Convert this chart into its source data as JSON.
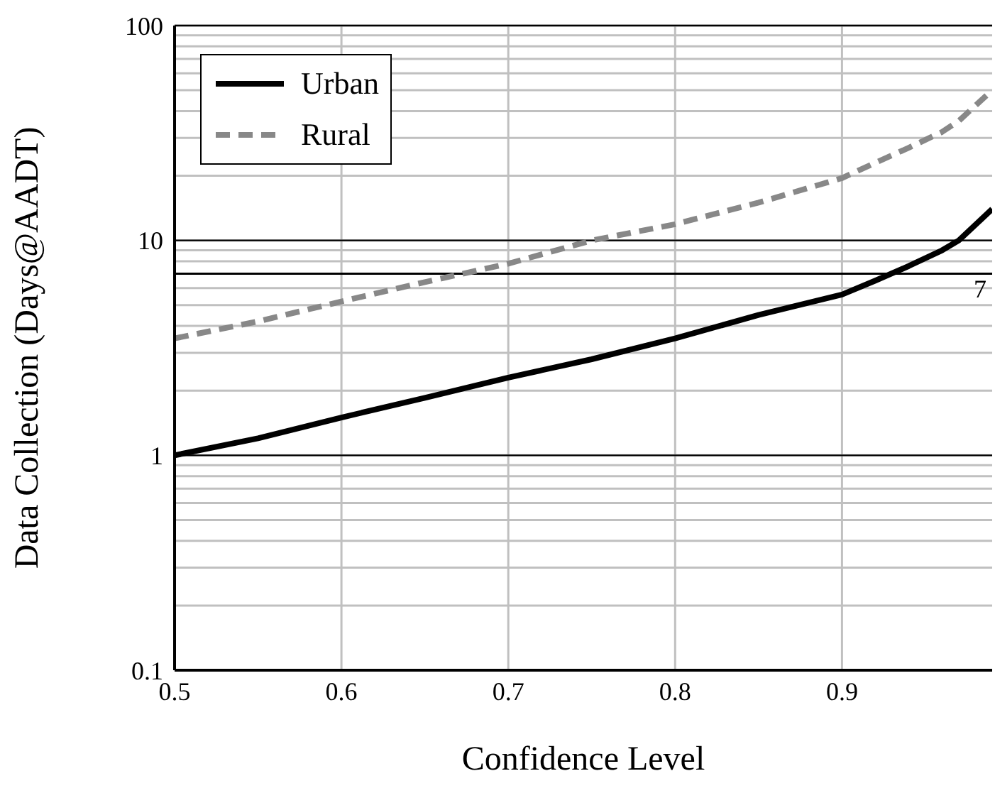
{
  "chart_data": {
    "type": "line",
    "xlabel": "Confidence Level",
    "ylabel": "Data Collection (Days@AADT)",
    "x": [
      0.5,
      0.55,
      0.6,
      0.65,
      0.7,
      0.75,
      0.8,
      0.85,
      0.9,
      0.92,
      0.94,
      0.96,
      0.97,
      0.99
    ],
    "series": [
      {
        "name": "Urban",
        "color": "#000000",
        "line_style": "solid",
        "values": [
          1.0,
          1.2,
          1.5,
          1.85,
          2.3,
          2.8,
          3.5,
          4.5,
          5.6,
          6.5,
          7.6,
          9.0,
          10,
          14
        ]
      },
      {
        "name": "Rural",
        "color": "#888888",
        "line_style": "dashed",
        "values": [
          3.5,
          4.2,
          5.2,
          6.4,
          7.8,
          10,
          11.9,
          15,
          19.5,
          23,
          27,
          32,
          36,
          50
        ]
      }
    ],
    "xlim": [
      0.5,
      0.99
    ],
    "xticks": [
      0.5,
      0.6,
      0.7,
      0.8,
      0.9
    ],
    "ylim": [
      0.1,
      100
    ],
    "log": true,
    "yticks": [
      0.1,
      {
        "value": 0.2,
        "label": null
      },
      {
        "value": 0.3,
        "label": null
      },
      {
        "value": 0.4,
        "label": null
      },
      {
        "value": 0.5,
        "label": null
      },
      {
        "value": 0.6,
        "label": null
      },
      {
        "value": 0.7,
        "label": null
      },
      {
        "value": 0.8,
        "label": null
      },
      {
        "value": 0.9,
        "label": null
      },
      1,
      {
        "value": 2,
        "label": null
      },
      {
        "value": 3,
        "label": null
      },
      {
        "value": 4,
        "label": null
      },
      {
        "value": 5,
        "label": null
      },
      {
        "value": 6,
        "label": null
      },
      {
        "value": 7,
        "label": null
      },
      {
        "value": 8,
        "label": null
      },
      {
        "value": 9,
        "label": null
      },
      10,
      {
        "value": 20,
        "label": null
      },
      {
        "value": 30,
        "label": null
      },
      {
        "value": 40,
        "label": null
      },
      {
        "value": 50,
        "label": null
      },
      {
        "value": 60,
        "label": null
      },
      {
        "value": 70,
        "label": null
      },
      {
        "value": 80,
        "label": null
      },
      {
        "value": 90,
        "label": null
      },
      100
    ],
    "ref_lines": [
      {
        "axis": "y",
        "value": 7,
        "label": "7",
        "color": "#000000"
      }
    ],
    "grid": true,
    "legend": "top left",
    "marker": "none"
  }
}
